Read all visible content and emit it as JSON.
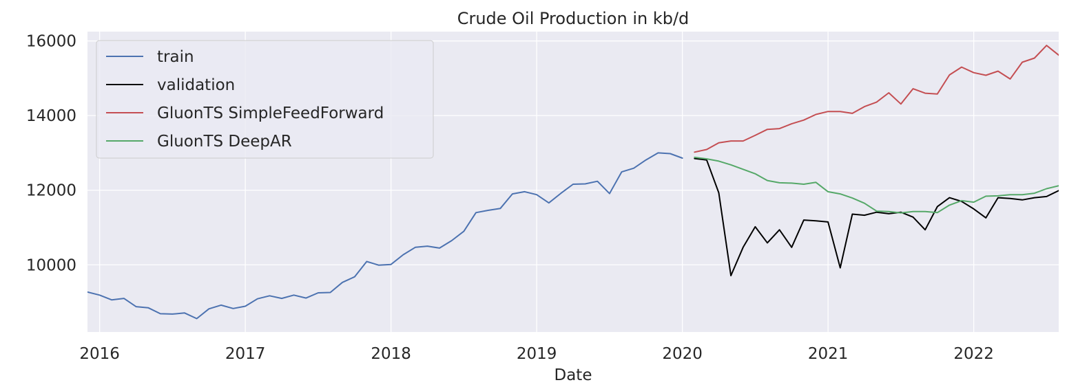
{
  "chart_data": {
    "type": "line",
    "title": "Crude Oil Production in kb/d",
    "xlabel": "Date",
    "ylabel": "",
    "xlim": [
      "2015-12",
      "2022-08"
    ],
    "ylim": [
      8200,
      16250
    ],
    "xticks": [
      "2016",
      "2017",
      "2018",
      "2019",
      "2020",
      "2021",
      "2022"
    ],
    "yticks": [
      10000,
      12000,
      14000,
      16000
    ],
    "grid": true,
    "legend_position": "top-left",
    "series": [
      {
        "name": "train",
        "color": "#4c72b0",
        "start": "2015-12",
        "values": [
          9270,
          9190,
          9060,
          9100,
          8880,
          8850,
          8690,
          8680,
          8710,
          8560,
          8820,
          8920,
          8830,
          8890,
          9090,
          9170,
          9100,
          9190,
          9110,
          9250,
          9260,
          9530,
          9680,
          10090,
          9990,
          10010,
          10270,
          10470,
          10500,
          10450,
          10650,
          10900,
          11400,
          11460,
          11510,
          11900,
          11960,
          11880,
          11660,
          11920,
          12160,
          12170,
          12240,
          11910,
          12490,
          12590,
          12810,
          13000,
          12980,
          12860
        ]
      },
      {
        "name": "validation",
        "color": "#000000",
        "start": "2020-02",
        "values": [
          12850,
          12810,
          11930,
          9710,
          10470,
          11020,
          10590,
          10940,
          10470,
          11200,
          11180,
          11150,
          9920,
          11360,
          11330,
          11410,
          11370,
          11410,
          11280,
          10940,
          11560,
          11800,
          11700,
          11500,
          11260,
          11800,
          11780,
          11740,
          11800,
          11830,
          11990
        ]
      },
      {
        "name": "GluonTS SimpleFeedForward",
        "color": "#c44e52",
        "start": "2020-02",
        "values": [
          13020,
          13090,
          13270,
          13320,
          13320,
          13470,
          13630,
          13650,
          13780,
          13880,
          14030,
          14110,
          14110,
          14060,
          14240,
          14360,
          14610,
          14310,
          14720,
          14600,
          14580,
          15090,
          15300,
          15150,
          15080,
          15190,
          14980,
          15430,
          15540,
          15880,
          15620
        ]
      },
      {
        "name": "GluonTS DeepAR",
        "color": "#55a868",
        "start": "2020-02",
        "values": [
          12880,
          12840,
          12780,
          12680,
          12560,
          12440,
          12260,
          12200,
          12190,
          12160,
          12210,
          11960,
          11900,
          11790,
          11650,
          11440,
          11430,
          11390,
          11430,
          11430,
          11400,
          11600,
          11720,
          11680,
          11840,
          11850,
          11880,
          11880,
          11920,
          12040,
          12120
        ]
      }
    ]
  }
}
